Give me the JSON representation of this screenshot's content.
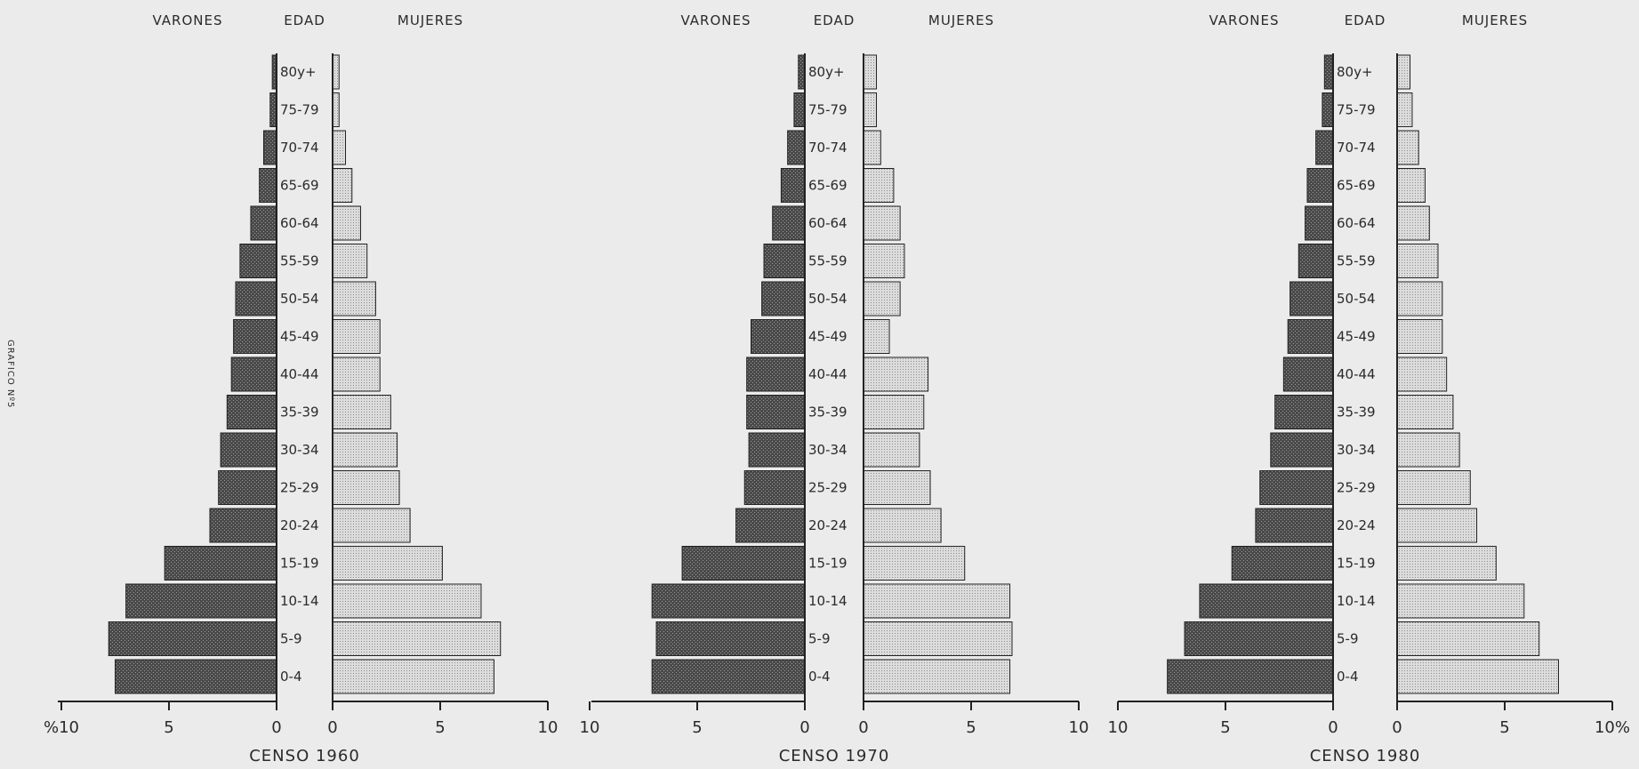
{
  "side_label": "GRAFICO Nº5",
  "headers": {
    "male": "VARONES",
    "age": "EDAD",
    "female": "MUJERES"
  },
  "colors": {
    "male_bar": "#4a4a4a",
    "female_bar": "#d6d6d6",
    "axis": "#222222",
    "background": "#ebebeb"
  },
  "chart_data": [
    {
      "type": "bar",
      "title": "CENSO 1960",
      "categories": [
        "80y+",
        "75-79",
        "70-74",
        "65-69",
        "60-64",
        "55-59",
        "50-54",
        "45-49",
        "40-44",
        "35-39",
        "30-34",
        "25-29",
        "20-24",
        "15-19",
        "10-14",
        "5-9",
        "0-4"
      ],
      "series": [
        {
          "name": "VARONES",
          "values": [
            0.2,
            0.3,
            0.6,
            0.8,
            1.2,
            1.7,
            1.9,
            2.0,
            2.1,
            2.3,
            2.6,
            2.7,
            3.1,
            5.2,
            7.0,
            7.8,
            7.5
          ]
        },
        {
          "name": "MUJERES",
          "values": [
            0.3,
            0.3,
            0.6,
            0.9,
            1.3,
            1.6,
            2.0,
            2.2,
            2.2,
            2.7,
            3.0,
            3.1,
            3.6,
            5.1,
            6.9,
            7.8,
            7.5
          ]
        }
      ],
      "xlim": [
        0,
        10
      ],
      "x_ticks_left": [
        "%10",
        "5",
        "0"
      ],
      "x_ticks_right": [
        "0",
        "5",
        "10"
      ]
    },
    {
      "type": "bar",
      "title": "CENSO 1970",
      "categories": [
        "80y+",
        "75-79",
        "70-74",
        "65-69",
        "60-64",
        "55-59",
        "50-54",
        "45-49",
        "40-44",
        "35-39",
        "30-34",
        "25-29",
        "20-24",
        "15-19",
        "10-14",
        "5-9",
        "0-4"
      ],
      "series": [
        {
          "name": "VARONES",
          "values": [
            0.3,
            0.5,
            0.8,
            1.1,
            1.5,
            1.9,
            2.0,
            2.5,
            2.7,
            2.7,
            2.6,
            2.8,
            3.2,
            5.7,
            7.1,
            6.9,
            7.1
          ]
        },
        {
          "name": "MUJERES",
          "values": [
            0.6,
            0.6,
            0.8,
            1.4,
            1.7,
            1.9,
            1.7,
            1.2,
            3.0,
            2.8,
            2.6,
            3.1,
            3.6,
            4.7,
            6.8,
            6.9,
            6.8
          ]
        }
      ],
      "xlim": [
        0,
        10
      ],
      "x_ticks_left": [
        "10",
        "5",
        "0"
      ],
      "x_ticks_right": [
        "0",
        "5",
        "10"
      ]
    },
    {
      "type": "bar",
      "title": "CENSO 1980",
      "categories": [
        "80y+",
        "75-79",
        "70-74",
        "65-69",
        "60-64",
        "55-59",
        "50-54",
        "45-49",
        "40-44",
        "35-39",
        "30-34",
        "25-29",
        "20-24",
        "15-19",
        "10-14",
        "5-9",
        "0-4"
      ],
      "series": [
        {
          "name": "VARONES",
          "values": [
            0.4,
            0.5,
            0.8,
            1.2,
            1.3,
            1.6,
            2.0,
            2.1,
            2.3,
            2.7,
            2.9,
            3.4,
            3.6,
            4.7,
            6.2,
            6.9,
            7.7
          ]
        },
        {
          "name": "MUJERES",
          "values": [
            0.6,
            0.7,
            1.0,
            1.3,
            1.5,
            1.9,
            2.1,
            2.1,
            2.3,
            2.6,
            2.9,
            3.4,
            3.7,
            4.6,
            5.9,
            6.6,
            7.5
          ]
        }
      ],
      "xlim": [
        0,
        10
      ],
      "x_ticks_left": [
        "10",
        "5",
        "0"
      ],
      "x_ticks_right": [
        "0",
        "5",
        "10%"
      ]
    }
  ]
}
